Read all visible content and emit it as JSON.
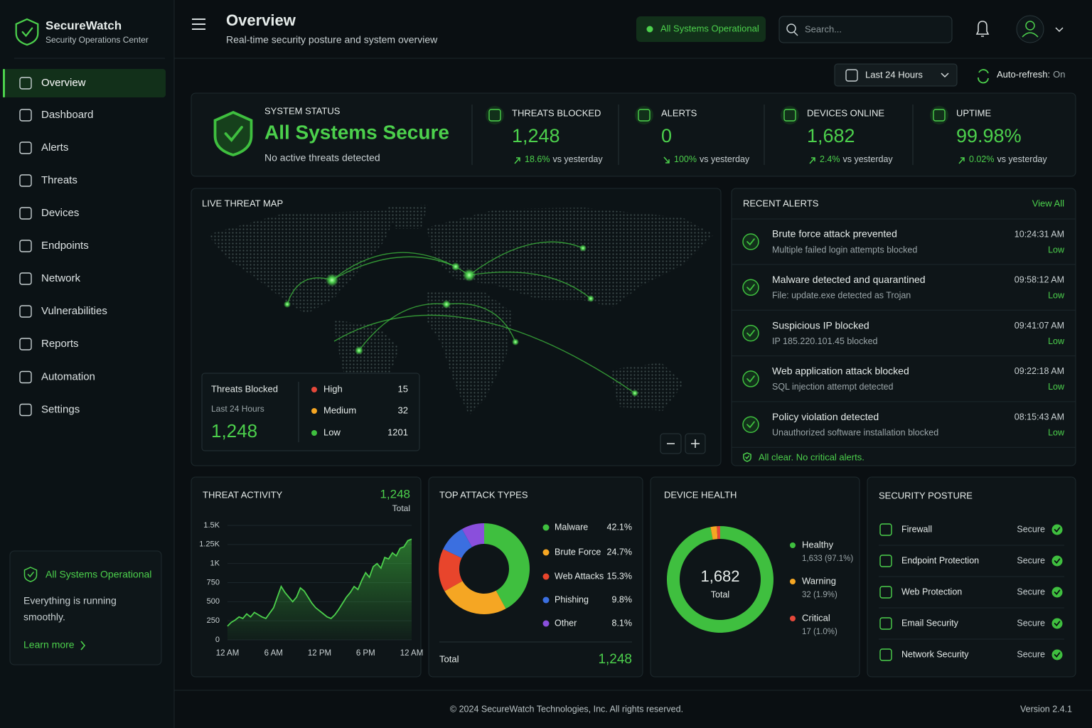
{
  "brand": {
    "name": "SecureWatch",
    "subtitle": "Security Operations Center"
  },
  "nav": [
    "Overview",
    "Dashboard",
    "Alerts",
    "Threats",
    "Devices",
    "Endpoints",
    "Network",
    "Vulnerabilities",
    "Reports",
    "Automation",
    "Settings"
  ],
  "sidebar_status": {
    "title": "All Systems Operational",
    "lines": [
      "Everything is running",
      "smoothly."
    ],
    "link": "Learn more"
  },
  "header": {
    "title": "Overview",
    "subtitle": "Real-time security posture and system overview",
    "status": "All Systems Operational",
    "search_placeholder": "Search..."
  },
  "toolbar": {
    "range": "Last 24 Hours",
    "autorefresh_label": "Auto-refresh:",
    "autorefresh_value": "On"
  },
  "system_status": {
    "label": "SYSTEM STATUS",
    "title": "All Systems Secure",
    "text": "No active threats detected"
  },
  "kpis": [
    {
      "label": "THREATS BLOCKED",
      "value": "1,248",
      "change": "18.6%",
      "suffix": "vs yesterday",
      "trend": "up"
    },
    {
      "label": "ALERTS",
      "value": "0",
      "change": "100%",
      "suffix": "vs yesterday",
      "trend": "down"
    },
    {
      "label": "DEVICES ONLINE",
      "value": "1,682",
      "change": "2.4%",
      "suffix": "vs yesterday",
      "trend": "up"
    },
    {
      "label": "UPTIME",
      "value": "99.98%",
      "change": "0.02%",
      "suffix": "vs yesterday",
      "trend": "up"
    }
  ],
  "threat_map": {
    "title": "LIVE THREAT MAP",
    "summary": {
      "title": "Threats Blocked",
      "subtitle": "Last 24 Hours",
      "value": "1,248"
    },
    "levels": [
      {
        "name": "High",
        "value": "15",
        "color": "#e5483a"
      },
      {
        "name": "Medium",
        "value": "32",
        "color": "#f5a623"
      },
      {
        "name": "Low",
        "value": "1201",
        "color": "#3fbf3f"
      }
    ]
  },
  "alerts": {
    "title": "RECENT ALERTS",
    "link": "View All",
    "items": [
      {
        "title": "Brute force attack prevented",
        "detail": "Multiple failed login attempts blocked",
        "time": "10:24:31 AM",
        "severity": "Low"
      },
      {
        "title": "Malware detected and quarantined",
        "detail": "File: update.exe detected as Trojan",
        "time": "09:58:12 AM",
        "severity": "Low"
      },
      {
        "title": "Suspicious IP blocked",
        "detail": "IP 185.220.101.45 blocked",
        "time": "09:41:07 AM",
        "severity": "Low"
      },
      {
        "title": "Web application attack blocked",
        "detail": "SQL injection attempt detected",
        "time": "09:22:18 AM",
        "severity": "Low"
      },
      {
        "title": "Policy violation detected",
        "detail": "Unauthorized software installation blocked",
        "time": "08:15:43 AM",
        "severity": "Low"
      }
    ],
    "footer": "All clear. No critical alerts."
  },
  "chart_data": [
    {
      "type": "line",
      "title": "THREAT ACTIVITY",
      "total": "1,248",
      "total_label": "Total",
      "color": "#4cd04c",
      "categories": [
        "12 AM",
        null,
        null,
        null,
        null,
        null,
        null,
        null,
        null,
        null,
        null,
        null,
        "6 AM",
        null,
        null,
        null,
        null,
        null,
        null,
        null,
        null,
        null,
        null,
        null,
        "12 PM",
        null,
        null,
        null,
        null,
        null,
        null,
        null,
        null,
        null,
        null,
        null,
        "6 PM",
        null,
        null,
        null,
        null,
        null,
        null,
        null,
        null,
        null,
        null,
        null,
        "12 AM"
      ],
      "values": [
        180,
        230,
        260,
        300,
        280,
        340,
        300,
        360,
        330,
        300,
        280,
        350,
        420,
        560,
        700,
        620,
        560,
        500,
        560,
        680,
        640,
        560,
        480,
        420,
        380,
        340,
        300,
        280,
        330,
        400,
        480,
        560,
        620,
        700,
        660,
        780,
        880,
        820,
        960,
        1000,
        940,
        1080,
        1060,
        1140,
        1100,
        1200,
        1220,
        1300,
        1320
      ],
      "ylim": [
        0,
        1500
      ],
      "yticks": [
        0,
        250,
        500,
        750,
        {
          "value": 1000,
          "label": "1K"
        },
        {
          "value": 1250,
          "label": "1.25K"
        },
        {
          "value": 1500,
          "label": "1.5K"
        }
      ]
    },
    {
      "type": "donut",
      "title": "TOP ATTACK TYPES",
      "total_label": "Total",
      "total": "1,248",
      "series": [
        {
          "name": "Malware",
          "color": "#3fbf3f",
          "values": [
            42.1
          ],
          "value_labels": [
            "42.1%"
          ]
        },
        {
          "name": "Brute Force",
          "color": "#f5a623",
          "values": [
            24.7
          ],
          "value_labels": [
            "24.7%"
          ]
        },
        {
          "name": "Web Attacks",
          "color": "#e8452c",
          "values": [
            15.3
          ],
          "value_labels": [
            "15.3%"
          ]
        },
        {
          "name": "Phishing",
          "color": "#3b6fe0",
          "values": [
            9.8
          ],
          "value_labels": [
            "9.8%"
          ]
        },
        {
          "name": "Other",
          "color": "#8a4fdc",
          "values": [
            8.1
          ],
          "value_labels": [
            "8.1%"
          ]
        }
      ]
    },
    {
      "type": "ring",
      "title": "DEVICE HEALTH",
      "center_value": "1,682",
      "center_label": "Total",
      "series": [
        {
          "name": "Healthy",
          "color": "#3fbf3f",
          "values": [
            1633
          ],
          "value_labels": [
            "1,633 (97.1%)"
          ]
        },
        {
          "name": "Warning",
          "color": "#f5a623",
          "values": [
            32
          ],
          "value_labels": [
            "32 (1.9%)"
          ]
        },
        {
          "name": "Critical",
          "color": "#e5483a",
          "values": [
            17
          ],
          "value_labels": [
            "17 (1.0%)"
          ]
        }
      ]
    }
  ],
  "security_posture": {
    "title": "SECURITY POSTURE",
    "items": [
      {
        "name": "Firewall",
        "status": "Secure"
      },
      {
        "name": "Endpoint Protection",
        "status": "Secure"
      },
      {
        "name": "Web Protection",
        "status": "Secure"
      },
      {
        "name": "Email Security",
        "status": "Secure"
      },
      {
        "name": "Network Security",
        "status": "Secure"
      }
    ]
  },
  "footer": {
    "copyright": "© 2024 SecureWatch Technologies, Inc. All rights reserved.",
    "version": "Version 2.4.1"
  }
}
